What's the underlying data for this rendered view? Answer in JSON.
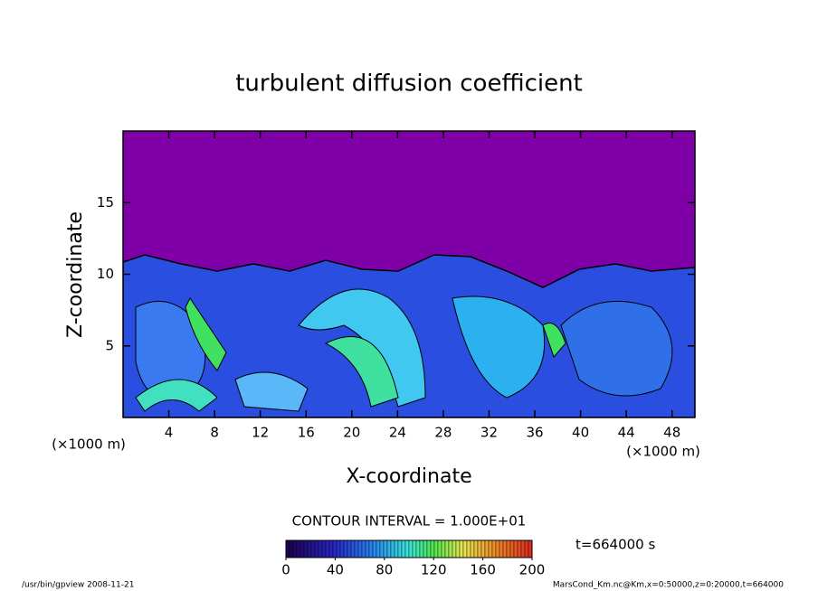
{
  "chart_data": {
    "type": "contour",
    "title": "turbulent diffusion coefficient",
    "xlabel": "X-coordinate",
    "ylabel": "Z-coordinate",
    "x_unit_label": "(×1000 m)",
    "y_unit_label": "(×1000 m)",
    "xlim": [
      0,
      50
    ],
    "xticks": [
      4,
      8,
      12,
      16,
      20,
      24,
      28,
      32,
      36,
      40,
      44,
      48
    ],
    "ylim": [
      0,
      20
    ],
    "yticks": [
      5,
      10,
      15
    ],
    "contour_note": "CONTOUR INTERVAL = 1.000E+01",
    "time_note": "t=664000 s",
    "colorbar": {
      "lim": [
        0,
        200
      ],
      "ticks": [
        0,
        40,
        80,
        120,
        160,
        200
      ]
    },
    "footer_left": "/usr/bin/gpview   2008-11-21",
    "footer_right": "MarsCond_Km.nc@Km,x=0:50000,z=0:20000,t=664000"
  }
}
